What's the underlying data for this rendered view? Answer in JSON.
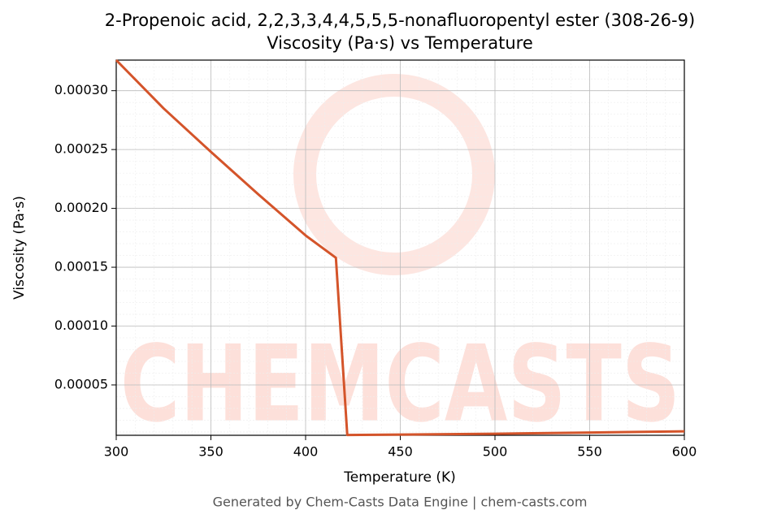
{
  "chart_data": {
    "type": "line",
    "title": "2-Propenoic acid, 2,2,3,3,4,4,5,5,5-nonafluoropentyl ester (308-26-9)",
    "subtitle": "Viscosity (Pa·s) vs Temperature",
    "x_label": "Temperature (K)",
    "y_label": "Viscosity (Pa·s)",
    "footer": "Generated by Chem-Casts Data Engine | chem-casts.com",
    "watermark": "CHEMCASTS",
    "x": [
      300,
      325,
      350,
      375,
      400,
      416,
      422,
      450,
      500,
      550,
      600
    ],
    "series": [
      {
        "name": "Viscosity",
        "color": "#d4542a",
        "values": [
          0.000326,
          0.000285,
          0.000248,
          0.000212,
          0.000177,
          0.000158,
          7.5e-06,
          7.8e-06,
          8.5e-06,
          9.5e-06,
          1.06e-05
        ]
      }
    ],
    "xlim": [
      300,
      600
    ],
    "xticks": [
      300,
      350,
      400,
      450,
      500,
      550,
      600
    ],
    "ylim": [
      7.2e-06,
      0.000326
    ],
    "yticks": [
      {
        "value": 5e-05,
        "label": "0.00005"
      },
      {
        "value": 0.0001,
        "label": "0.00010"
      },
      {
        "value": 0.00015,
        "label": "0.00015"
      },
      {
        "value": 0.0002,
        "label": "0.00020"
      },
      {
        "value": 0.00025,
        "label": "0.00025"
      },
      {
        "value": 0.0003,
        "label": "0.00030"
      }
    ],
    "grid": true
  }
}
